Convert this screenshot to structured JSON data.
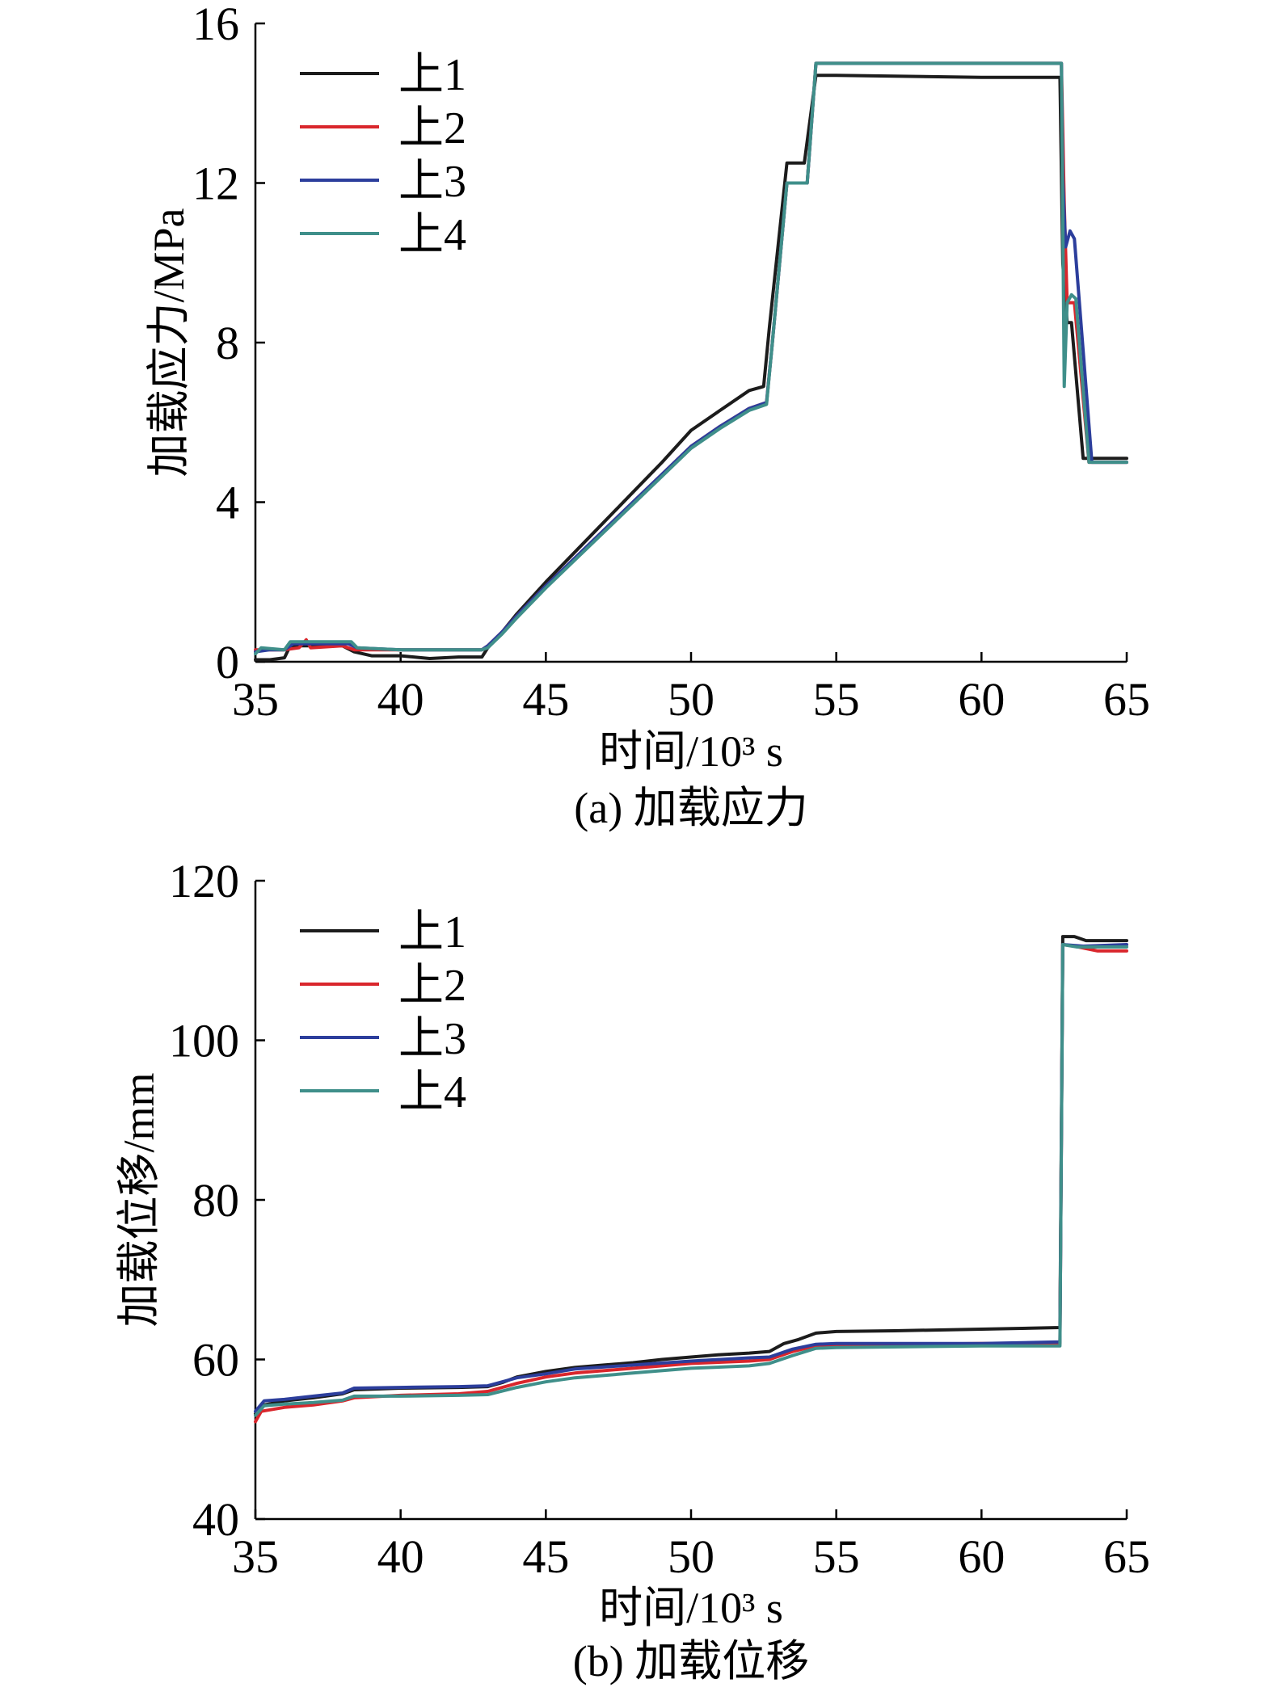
{
  "chart_data": [
    {
      "type": "line",
      "caption": "(a) 加载应力",
      "xlabel": "时间/10³ s",
      "ylabel": "加载应力/MPa",
      "xlim": [
        35,
        65
      ],
      "ylim": [
        0,
        16
      ],
      "xticks": [
        35,
        40,
        45,
        50,
        55,
        60,
        65
      ],
      "yticks": [
        0,
        4,
        8,
        12,
        16
      ],
      "grid": false,
      "legend_position": "top-left",
      "series": [
        {
          "name": "上1",
          "color": "#1c1c1c",
          "points": [
            [
              35.0,
              0.05
            ],
            [
              35.5,
              0.05
            ],
            [
              36.0,
              0.1
            ],
            [
              36.2,
              0.4
            ],
            [
              37.0,
              0.4
            ],
            [
              38.0,
              0.4
            ],
            [
              38.4,
              0.25
            ],
            [
              39.0,
              0.15
            ],
            [
              40.0,
              0.15
            ],
            [
              41.0,
              0.08
            ],
            [
              42.0,
              0.12
            ],
            [
              42.8,
              0.12
            ],
            [
              43.0,
              0.35
            ],
            [
              43.5,
              0.75
            ],
            [
              44.0,
              1.2
            ],
            [
              45.0,
              2.0
            ],
            [
              46.0,
              2.75
            ],
            [
              47.0,
              3.5
            ],
            [
              48.0,
              4.25
            ],
            [
              49.0,
              5.0
            ],
            [
              50.0,
              5.8
            ],
            [
              51.0,
              6.3
            ],
            [
              52.0,
              6.8
            ],
            [
              52.5,
              6.9
            ],
            [
              52.7,
              8.4
            ],
            [
              53.3,
              12.5
            ],
            [
              53.9,
              12.5
            ],
            [
              54.3,
              14.7
            ],
            [
              55.0,
              14.7
            ],
            [
              60.0,
              14.65
            ],
            [
              62.7,
              14.65
            ],
            [
              62.8,
              10.0
            ],
            [
              62.95,
              8.5
            ],
            [
              63.1,
              8.5
            ],
            [
              63.5,
              5.1
            ],
            [
              64.0,
              5.1
            ],
            [
              65.0,
              5.1
            ]
          ]
        },
        {
          "name": "上2",
          "color": "#d9262c",
          "points": [
            [
              35.0,
              0.3
            ],
            [
              36.0,
              0.3
            ],
            [
              36.5,
              0.35
            ],
            [
              36.75,
              0.55
            ],
            [
              36.9,
              0.35
            ],
            [
              38.0,
              0.4
            ],
            [
              38.4,
              0.3
            ],
            [
              40.0,
              0.3
            ],
            [
              42.8,
              0.3
            ],
            [
              43.0,
              0.4
            ],
            [
              43.5,
              0.75
            ],
            [
              44.0,
              1.15
            ],
            [
              45.0,
              1.9
            ],
            [
              46.0,
              2.6
            ],
            [
              47.0,
              3.3
            ],
            [
              48.0,
              4.0
            ],
            [
              49.0,
              4.7
            ],
            [
              50.0,
              5.4
            ],
            [
              51.0,
              5.9
            ],
            [
              52.0,
              6.35
            ],
            [
              52.6,
              6.5
            ],
            [
              52.8,
              8.0
            ],
            [
              53.3,
              12.0
            ],
            [
              54.0,
              12.0
            ],
            [
              54.3,
              15.0
            ],
            [
              62.75,
              15.0
            ],
            [
              62.85,
              11.5
            ],
            [
              62.95,
              9.0
            ],
            [
              63.2,
              9.0
            ],
            [
              63.7,
              5.0
            ],
            [
              65.0,
              5.0
            ]
          ]
        },
        {
          "name": "上3",
          "color": "#2c3e9c",
          "points": [
            [
              35.0,
              0.25
            ],
            [
              35.5,
              0.3
            ],
            [
              36.0,
              0.3
            ],
            [
              36.3,
              0.45
            ],
            [
              38.2,
              0.45
            ],
            [
              38.5,
              0.35
            ],
            [
              40.0,
              0.3
            ],
            [
              42.8,
              0.3
            ],
            [
              43.0,
              0.4
            ],
            [
              43.5,
              0.75
            ],
            [
              44.0,
              1.15
            ],
            [
              45.0,
              1.9
            ],
            [
              46.0,
              2.6
            ],
            [
              47.0,
              3.3
            ],
            [
              48.0,
              4.0
            ],
            [
              49.0,
              4.7
            ],
            [
              50.0,
              5.4
            ],
            [
              51.0,
              5.9
            ],
            [
              52.0,
              6.35
            ],
            [
              52.6,
              6.5
            ],
            [
              52.8,
              8.0
            ],
            [
              53.3,
              12.0
            ],
            [
              54.0,
              12.0
            ],
            [
              54.3,
              15.0
            ],
            [
              62.75,
              15.0
            ],
            [
              62.8,
              12.1
            ],
            [
              62.9,
              10.4
            ],
            [
              63.05,
              10.8
            ],
            [
              63.2,
              10.6
            ],
            [
              63.8,
              5.0
            ],
            [
              65.0,
              5.0
            ]
          ]
        },
        {
          "name": "上4",
          "color": "#3f8f8a",
          "points": [
            [
              35.0,
              0.2
            ],
            [
              35.2,
              0.35
            ],
            [
              36.0,
              0.3
            ],
            [
              36.2,
              0.5
            ],
            [
              38.3,
              0.5
            ],
            [
              38.5,
              0.35
            ],
            [
              40.0,
              0.3
            ],
            [
              42.8,
              0.3
            ],
            [
              43.0,
              0.35
            ],
            [
              43.5,
              0.7
            ],
            [
              44.0,
              1.1
            ],
            [
              45.0,
              1.85
            ],
            [
              46.0,
              2.55
            ],
            [
              47.0,
              3.25
            ],
            [
              48.0,
              3.95
            ],
            [
              49.0,
              4.65
            ],
            [
              50.0,
              5.35
            ],
            [
              51.0,
              5.85
            ],
            [
              52.0,
              6.3
            ],
            [
              52.6,
              6.45
            ],
            [
              52.8,
              8.0
            ],
            [
              53.3,
              12.0
            ],
            [
              54.0,
              12.0
            ],
            [
              54.3,
              15.0
            ],
            [
              62.75,
              15.0
            ],
            [
              62.85,
              6.9
            ],
            [
              62.95,
              9.0
            ],
            [
              63.1,
              9.2
            ],
            [
              63.25,
              9.1
            ],
            [
              63.7,
              5.0
            ],
            [
              65.0,
              5.0
            ]
          ]
        }
      ]
    },
    {
      "type": "line",
      "caption": "(b) 加载位移",
      "xlabel": "时间/10³ s",
      "ylabel": "加载位移/mm",
      "xlim": [
        35,
        65
      ],
      "ylim": [
        40,
        120
      ],
      "xticks": [
        35,
        40,
        45,
        50,
        55,
        60,
        65
      ],
      "yticks": [
        40,
        60,
        80,
        100,
        120
      ],
      "grid": false,
      "legend_position": "top-left",
      "series": [
        {
          "name": "上1",
          "color": "#1c1c1c",
          "points": [
            [
              35.0,
              53.2
            ],
            [
              35.3,
              54.3
            ],
            [
              36.0,
              54.8
            ],
            [
              37.0,
              55.2
            ],
            [
              38.0,
              55.7
            ],
            [
              38.4,
              56.2
            ],
            [
              40.0,
              56.4
            ],
            [
              42.0,
              56.5
            ],
            [
              43.0,
              56.6
            ],
            [
              43.5,
              57.1
            ],
            [
              44.0,
              57.8
            ],
            [
              45.0,
              58.5
            ],
            [
              46.0,
              59.0
            ],
            [
              47.0,
              59.3
            ],
            [
              48.0,
              59.6
            ],
            [
              49.0,
              60.0
            ],
            [
              50.0,
              60.3
            ],
            [
              51.0,
              60.6
            ],
            [
              52.0,
              60.8
            ],
            [
              52.7,
              61.0
            ],
            [
              53.2,
              62.0
            ],
            [
              53.7,
              62.5
            ],
            [
              54.3,
              63.3
            ],
            [
              55.0,
              63.5
            ],
            [
              57.0,
              63.6
            ],
            [
              60.0,
              63.8
            ],
            [
              62.7,
              64.0
            ],
            [
              62.8,
              113.0
            ],
            [
              63.2,
              113.0
            ],
            [
              63.6,
              112.5
            ],
            [
              65.0,
              112.5
            ]
          ]
        },
        {
          "name": "上2",
          "color": "#d9262c",
          "points": [
            [
              35.0,
              52.2
            ],
            [
              35.2,
              53.5
            ],
            [
              36.0,
              54.0
            ],
            [
              37.0,
              54.3
            ],
            [
              38.0,
              54.8
            ],
            [
              38.4,
              55.2
            ],
            [
              40.0,
              55.5
            ],
            [
              42.0,
              55.7
            ],
            [
              43.0,
              56.0
            ],
            [
              44.0,
              57.0
            ],
            [
              45.0,
              57.8
            ],
            [
              46.0,
              58.3
            ],
            [
              48.0,
              58.9
            ],
            [
              50.0,
              59.5
            ],
            [
              52.0,
              59.8
            ],
            [
              52.7,
              60.0
            ],
            [
              53.5,
              61.0
            ],
            [
              54.3,
              61.7
            ],
            [
              55.0,
              61.8
            ],
            [
              60.0,
              62.0
            ],
            [
              62.7,
              62.0
            ],
            [
              62.8,
              112.0
            ],
            [
              63.2,
              111.8
            ],
            [
              64.0,
              111.2
            ],
            [
              65.0,
              111.2
            ]
          ]
        },
        {
          "name": "上3",
          "color": "#2c3e9c",
          "points": [
            [
              35.0,
              53.5
            ],
            [
              35.3,
              54.8
            ],
            [
              36.0,
              55.0
            ],
            [
              37.0,
              55.4
            ],
            [
              38.0,
              55.8
            ],
            [
              38.4,
              56.4
            ],
            [
              40.0,
              56.5
            ],
            [
              42.0,
              56.6
            ],
            [
              43.0,
              56.7
            ],
            [
              43.5,
              57.2
            ],
            [
              44.0,
              57.7
            ],
            [
              45.0,
              58.2
            ],
            [
              46.0,
              58.8
            ],
            [
              48.0,
              59.3
            ],
            [
              50.0,
              59.8
            ],
            [
              52.0,
              60.2
            ],
            [
              52.7,
              60.3
            ],
            [
              53.5,
              61.3
            ],
            [
              54.3,
              61.9
            ],
            [
              55.0,
              62.0
            ],
            [
              60.0,
              62.0
            ],
            [
              62.7,
              62.2
            ],
            [
              62.8,
              112.0
            ],
            [
              63.5,
              111.8
            ],
            [
              65.0,
              112.0
            ]
          ]
        },
        {
          "name": "上4",
          "color": "#3f8f8a",
          "points": [
            [
              35.0,
              53.0
            ],
            [
              35.3,
              54.2
            ],
            [
              36.0,
              54.4
            ],
            [
              37.0,
              54.6
            ],
            [
              38.0,
              54.9
            ],
            [
              38.4,
              55.4
            ],
            [
              40.0,
              55.4
            ],
            [
              42.0,
              55.5
            ],
            [
              43.0,
              55.6
            ],
            [
              44.0,
              56.5
            ],
            [
              45.0,
              57.2
            ],
            [
              46.0,
              57.7
            ],
            [
              48.0,
              58.3
            ],
            [
              50.0,
              58.9
            ],
            [
              52.0,
              59.2
            ],
            [
              52.7,
              59.5
            ],
            [
              53.5,
              60.5
            ],
            [
              54.3,
              61.4
            ],
            [
              55.0,
              61.5
            ],
            [
              60.0,
              61.7
            ],
            [
              62.7,
              61.7
            ],
            [
              62.8,
              112.0
            ],
            [
              63.3,
              111.7
            ],
            [
              65.0,
              111.7
            ]
          ]
        }
      ]
    }
  ]
}
